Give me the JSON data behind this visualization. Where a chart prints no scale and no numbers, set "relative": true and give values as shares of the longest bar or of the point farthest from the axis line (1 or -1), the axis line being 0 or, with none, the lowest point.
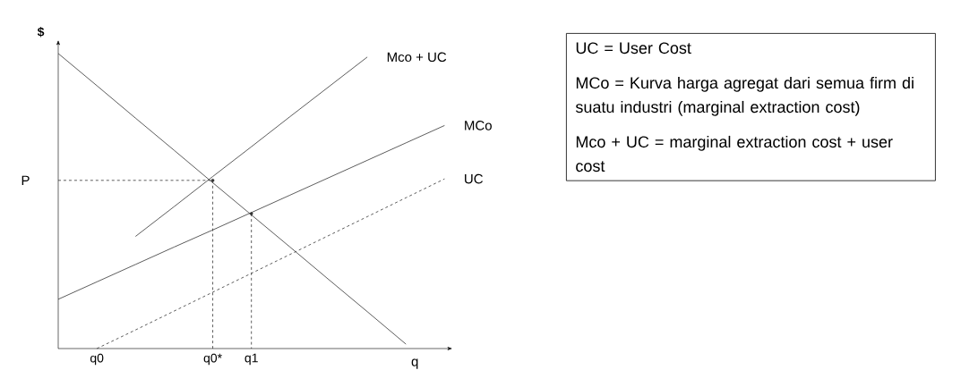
{
  "chart_data": {
    "type": "line",
    "relative": true,
    "xlabel": "q",
    "ylabel": "$",
    "tick_labels": "x",
    "categories": [
      null,
      "q0",
      null,
      null,
      "q0*",
      "q1",
      null,
      null,
      null,
      null,
      null
    ],
    "series": [
      {
        "color": "#333333",
        "values": [
          1,
          0.891,
          0.781,
          0.672,
          0.562,
          0.453,
          0.344,
          0.234,
          0.125,
          0.015,
          null
        ]
      },
      {
        "name": "Mco + UC",
        "color": "#333333",
        "values": [
          null,
          null,
          0.38,
          0.481,
          0.583,
          0.684,
          0.786,
          0.887,
          0.988,
          null,
          null
        ]
      },
      {
        "name": "MCo",
        "color": "#333333",
        "values": [
          0.167,
          0.226,
          0.285,
          0.344,
          0.402,
          0.461,
          0.52,
          0.579,
          0.638,
          0.697,
          0.756
        ]
      },
      {
        "name": "UC",
        "color": "#333333",
        "line_style": "dashed",
        "values": [
          null,
          0,
          0.063,
          0.127,
          0.191,
          0.255,
          0.319,
          0.383,
          0.447,
          0.511,
          0.575
        ]
      },
      {
        "type": "lollipop",
        "marker": "circle",
        "color": "#333333",
        "line_style": "dashed",
        "values": [
          null,
          null,
          null,
          null,
          0.57,
          0.457,
          null,
          null,
          null,
          null,
          null
        ]
      }
    ],
    "ref_lines": [
      {
        "axis": "y",
        "value": 0.57,
        "label": "P",
        "color": "#333333",
        "line_style": "dashed"
      }
    ],
    "annotations": [
      "UC = User Cost",
      "MCo = Kurva harga agregat dari semua firm di suatu industri (marginal extraction cost)",
      "Mco + UC = marginal extraction cost + user cost"
    ]
  }
}
